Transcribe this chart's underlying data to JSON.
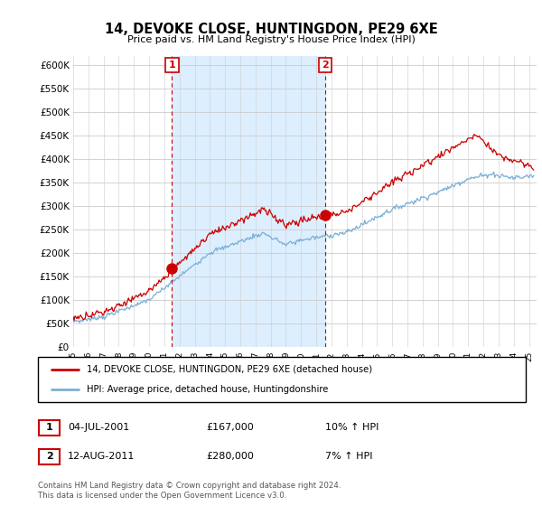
{
  "title": "14, DEVOKE CLOSE, HUNTINGDON, PE29 6XE",
  "subtitle": "Price paid vs. HM Land Registry's House Price Index (HPI)",
  "legend_line1": "14, DEVOKE CLOSE, HUNTINGDON, PE29 6XE (detached house)",
  "legend_line2": "HPI: Average price, detached house, Huntingdonshire",
  "footnote": "Contains HM Land Registry data © Crown copyright and database right 2024.\nThis data is licensed under the Open Government Licence v3.0.",
  "transaction1": {
    "label": "1",
    "date": "04-JUL-2001",
    "price": "£167,000",
    "hpi": "10% ↑ HPI"
  },
  "transaction2": {
    "label": "2",
    "date": "12-AUG-2011",
    "price": "£280,000",
    "hpi": "7% ↑ HPI"
  },
  "vline1_x": 2001.5,
  "vline2_x": 2011.6,
  "marker1_x": 2001.5,
  "marker1_y": 167000,
  "marker2_x": 2011.6,
  "marker2_y": 280000,
  "red_line_color": "#cc0000",
  "blue_line_color": "#7bafd4",
  "shade_color": "#ddeeff",
  "plot_bg_color": "#ffffff",
  "grid_color": "#cccccc",
  "ylim": [
    0,
    620000
  ],
  "xlim_start": 1995.0,
  "xlim_end": 2025.5,
  "ylabel_ticks": [
    0,
    50000,
    100000,
    150000,
    200000,
    250000,
    300000,
    350000,
    400000,
    450000,
    500000,
    550000,
    600000
  ]
}
